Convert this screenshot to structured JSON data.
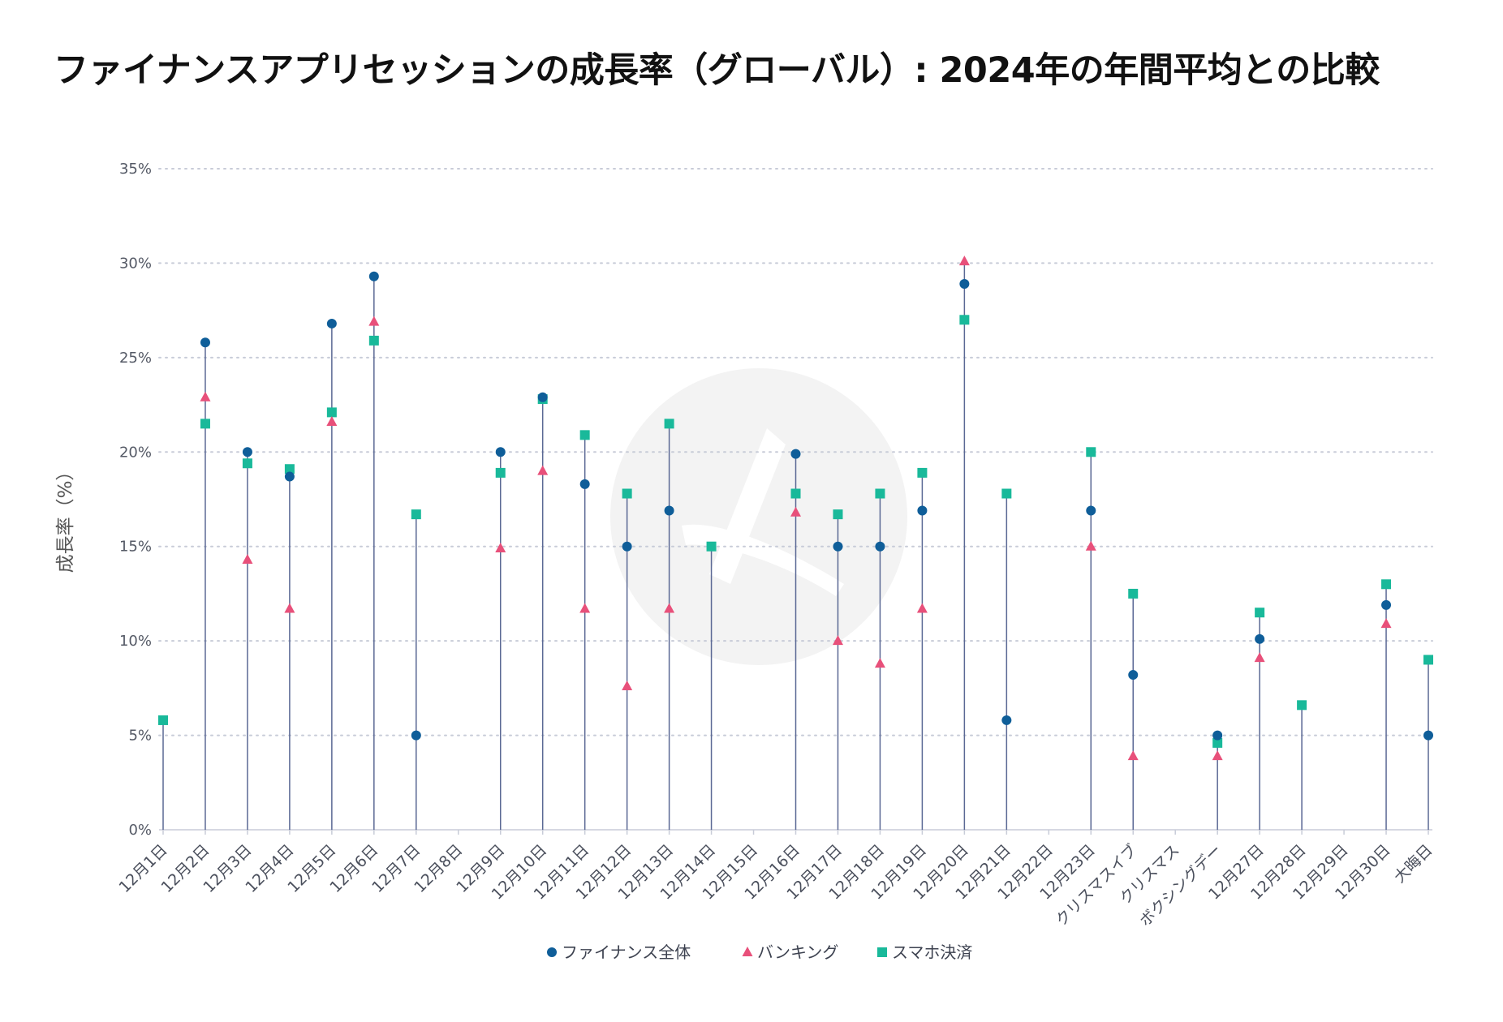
{
  "chart_data": {
    "type": "scatter",
    "title": "ファイナンスアプリセッションの成長率（グローバル）: 2024年の年間平均との比較",
    "ylabel": "成長率（%）",
    "xlabel": "",
    "ylim": [
      0,
      35
    ],
    "yticks": [
      "0%",
      "5%",
      "10%",
      "15%",
      "20%",
      "25%",
      "30%",
      "35%"
    ],
    "grid": true,
    "legend_position": "bottom",
    "categories": [
      "12月1日",
      "12月2日",
      "12月3日",
      "12月4日",
      "12月5日",
      "12月6日",
      "12月7日",
      "12月8日",
      "12月9日",
      "12月10日",
      "12月11日",
      "12月12日",
      "12月13日",
      "12月14日",
      "12月15日",
      "12月16日",
      "12月17日",
      "12月18日",
      "12月19日",
      "12月20日",
      "12月21日",
      "12月22日",
      "12月23日",
      "クリスマスイブ",
      "クリスマス",
      "ボクシングデー",
      "12月27日",
      "12月28日",
      "12月29日",
      "12月30日",
      "大晦日"
    ],
    "series": [
      {
        "name": "ファイナンス全体",
        "marker": "circle",
        "color": "#0f5e99",
        "values": [
          null,
          25.8,
          20.0,
          18.7,
          26.8,
          29.3,
          5.0,
          null,
          20.0,
          22.9,
          18.3,
          15.0,
          16.9,
          null,
          null,
          19.9,
          15.0,
          15.0,
          16.9,
          28.9,
          5.8,
          null,
          16.9,
          8.2,
          null,
          5.0,
          10.1,
          null,
          null,
          11.9,
          5.0
        ]
      },
      {
        "name": "バンキング",
        "marker": "triangle",
        "color": "#e8507a",
        "values": [
          null,
          22.9,
          14.3,
          11.7,
          21.6,
          26.9,
          null,
          null,
          14.9,
          19.0,
          11.7,
          7.6,
          11.7,
          null,
          null,
          16.8,
          10.0,
          8.8,
          11.7,
          30.1,
          null,
          null,
          15.0,
          3.9,
          null,
          3.9,
          9.1,
          null,
          null,
          10.9,
          null
        ]
      },
      {
        "name": "スマホ決済",
        "marker": "square",
        "color": "#19b99a",
        "values": [
          5.8,
          21.5,
          19.4,
          19.1,
          22.1,
          25.9,
          16.7,
          null,
          18.9,
          22.8,
          20.9,
          17.8,
          21.5,
          15.0,
          null,
          17.8,
          16.7,
          17.8,
          18.9,
          27.0,
          17.8,
          null,
          20.0,
          12.5,
          null,
          4.6,
          11.5,
          6.6,
          null,
          13.0,
          9.0
        ]
      }
    ],
    "colors": {
      "stem": "#5a6894",
      "grid": "#c8ccd8",
      "axis": "#c8ccd8",
      "watermark": "#f2f2f2"
    }
  }
}
